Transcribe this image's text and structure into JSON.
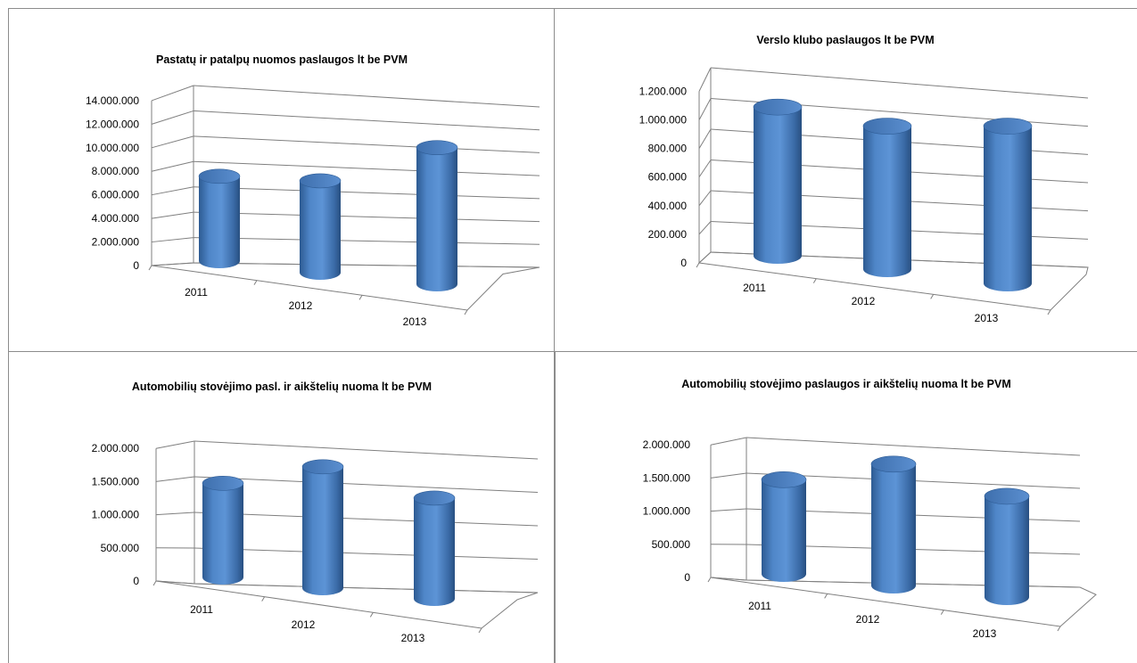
{
  "chart_data": [
    {
      "type": "bar",
      "title": "Pastatų ir patalpų nuomos paslaugos  lt be PVM",
      "categories": [
        "2011",
        "2012",
        "2013"
      ],
      "values": [
        7200000,
        7800000,
        11600000
      ],
      "ylim": [
        0,
        14000000
      ],
      "yticks": [
        "0",
        "2.000.000",
        "4.000.000",
        "6.000.000",
        "8.000.000",
        "10.000.000",
        "12.000.000",
        "14.000.000"
      ],
      "bar_color": "#4a7ebb",
      "grid": true
    },
    {
      "type": "bar",
      "title": "Verslo klubo paslaugos lt be PVM",
      "categories": [
        "2011",
        "2012",
        "2013"
      ],
      "values": [
        1040000,
        1000000,
        1100000
      ],
      "ylim": [
        0,
        1200000
      ],
      "yticks": [
        "0",
        "200.000",
        "400.000",
        "600.000",
        "800.000",
        "1.000.000",
        "1.200.000"
      ],
      "bar_color": "#4a7ebb",
      "grid": true
    },
    {
      "type": "bar",
      "title": "Automobilių stovėjimo pasl. ir aikštelių nuoma  lt be PVM",
      "categories": [
        "2011",
        "2012",
        "2013"
      ],
      "values": [
        1420000,
        1830000,
        1520000
      ],
      "ylim": [
        0,
        2000000
      ],
      "yticks": [
        "0",
        "500.000",
        "1.000.000",
        "1.500.000",
        "2.000.000"
      ],
      "bar_color": "#4a7ebb",
      "grid": true
    },
    {
      "type": "bar",
      "title": "Automobilių stovėjimo paslaugos ir aikštelių nuoma  lt be PVM",
      "categories": [
        "2011",
        "2012",
        "2013"
      ],
      "values": [
        1420000,
        1830000,
        1520000
      ],
      "ylim": [
        0,
        2000000
      ],
      "yticks": [
        "0",
        "500.000",
        "1.000.000",
        "1.500.000",
        "2.000.000"
      ],
      "bar_color": "#4a7ebb",
      "grid": true
    }
  ]
}
